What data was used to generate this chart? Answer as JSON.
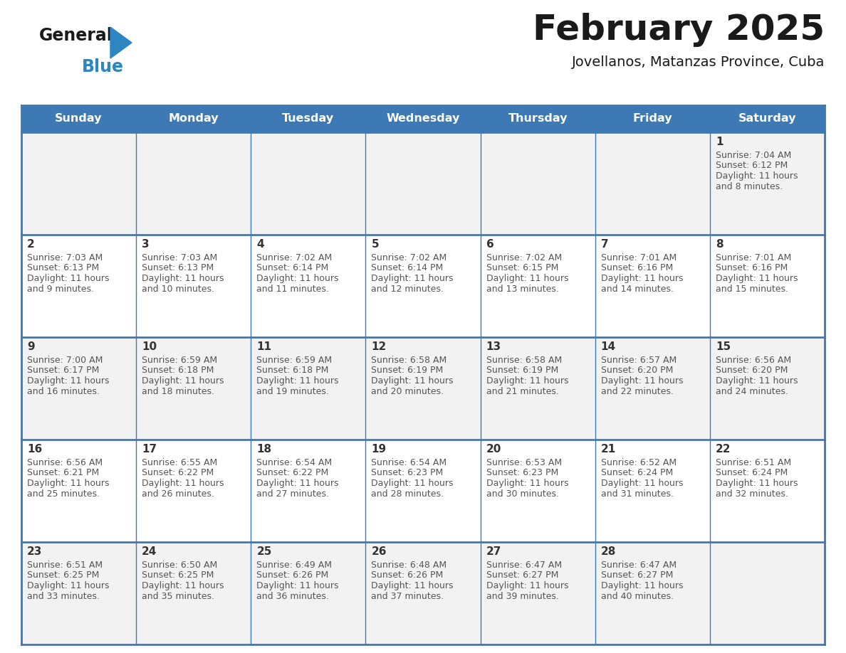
{
  "title": "February 2025",
  "subtitle": "Jovellanos, Matanzas Province, Cuba",
  "days_of_week": [
    "Sunday",
    "Monday",
    "Tuesday",
    "Wednesday",
    "Thursday",
    "Friday",
    "Saturday"
  ],
  "header_bg": "#3D7AB5",
  "header_text": "#FFFFFF",
  "cell_bg_odd": "#F2F2F2",
  "cell_bg_even": "#FFFFFF",
  "cell_border": "#3D7AB5",
  "text_color": "#555555",
  "day_number_color": "#333333",
  "logo_general_color": "#1a1a1a",
  "logo_blue_color": "#2E86C1",
  "calendar_data": [
    [
      null,
      null,
      null,
      null,
      null,
      null,
      {
        "day": 1,
        "sunrise": "7:04 AM",
        "sunset": "6:12 PM",
        "daylight_h": "11 hours",
        "daylight_m": "and 8 minutes."
      }
    ],
    [
      {
        "day": 2,
        "sunrise": "7:03 AM",
        "sunset": "6:13 PM",
        "daylight_h": "11 hours",
        "daylight_m": "and 9 minutes."
      },
      {
        "day": 3,
        "sunrise": "7:03 AM",
        "sunset": "6:13 PM",
        "daylight_h": "11 hours",
        "daylight_m": "and 10 minutes."
      },
      {
        "day": 4,
        "sunrise": "7:02 AM",
        "sunset": "6:14 PM",
        "daylight_h": "11 hours",
        "daylight_m": "and 11 minutes."
      },
      {
        "day": 5,
        "sunrise": "7:02 AM",
        "sunset": "6:14 PM",
        "daylight_h": "11 hours",
        "daylight_m": "and 12 minutes."
      },
      {
        "day": 6,
        "sunrise": "7:02 AM",
        "sunset": "6:15 PM",
        "daylight_h": "11 hours",
        "daylight_m": "and 13 minutes."
      },
      {
        "day": 7,
        "sunrise": "7:01 AM",
        "sunset": "6:16 PM",
        "daylight_h": "11 hours",
        "daylight_m": "and 14 minutes."
      },
      {
        "day": 8,
        "sunrise": "7:01 AM",
        "sunset": "6:16 PM",
        "daylight_h": "11 hours",
        "daylight_m": "and 15 minutes."
      }
    ],
    [
      {
        "day": 9,
        "sunrise": "7:00 AM",
        "sunset": "6:17 PM",
        "daylight_h": "11 hours",
        "daylight_m": "and 16 minutes."
      },
      {
        "day": 10,
        "sunrise": "6:59 AM",
        "sunset": "6:18 PM",
        "daylight_h": "11 hours",
        "daylight_m": "and 18 minutes."
      },
      {
        "day": 11,
        "sunrise": "6:59 AM",
        "sunset": "6:18 PM",
        "daylight_h": "11 hours",
        "daylight_m": "and 19 minutes."
      },
      {
        "day": 12,
        "sunrise": "6:58 AM",
        "sunset": "6:19 PM",
        "daylight_h": "11 hours",
        "daylight_m": "and 20 minutes."
      },
      {
        "day": 13,
        "sunrise": "6:58 AM",
        "sunset": "6:19 PM",
        "daylight_h": "11 hours",
        "daylight_m": "and 21 minutes."
      },
      {
        "day": 14,
        "sunrise": "6:57 AM",
        "sunset": "6:20 PM",
        "daylight_h": "11 hours",
        "daylight_m": "and 22 minutes."
      },
      {
        "day": 15,
        "sunrise": "6:56 AM",
        "sunset": "6:20 PM",
        "daylight_h": "11 hours",
        "daylight_m": "and 24 minutes."
      }
    ],
    [
      {
        "day": 16,
        "sunrise": "6:56 AM",
        "sunset": "6:21 PM",
        "daylight_h": "11 hours",
        "daylight_m": "and 25 minutes."
      },
      {
        "day": 17,
        "sunrise": "6:55 AM",
        "sunset": "6:22 PM",
        "daylight_h": "11 hours",
        "daylight_m": "and 26 minutes."
      },
      {
        "day": 18,
        "sunrise": "6:54 AM",
        "sunset": "6:22 PM",
        "daylight_h": "11 hours",
        "daylight_m": "and 27 minutes."
      },
      {
        "day": 19,
        "sunrise": "6:54 AM",
        "sunset": "6:23 PM",
        "daylight_h": "11 hours",
        "daylight_m": "and 28 minutes."
      },
      {
        "day": 20,
        "sunrise": "6:53 AM",
        "sunset": "6:23 PM",
        "daylight_h": "11 hours",
        "daylight_m": "and 30 minutes."
      },
      {
        "day": 21,
        "sunrise": "6:52 AM",
        "sunset": "6:24 PM",
        "daylight_h": "11 hours",
        "daylight_m": "and 31 minutes."
      },
      {
        "day": 22,
        "sunrise": "6:51 AM",
        "sunset": "6:24 PM",
        "daylight_h": "11 hours",
        "daylight_m": "and 32 minutes."
      }
    ],
    [
      {
        "day": 23,
        "sunrise": "6:51 AM",
        "sunset": "6:25 PM",
        "daylight_h": "11 hours",
        "daylight_m": "and 33 minutes."
      },
      {
        "day": 24,
        "sunrise": "6:50 AM",
        "sunset": "6:25 PM",
        "daylight_h": "11 hours",
        "daylight_m": "and 35 minutes."
      },
      {
        "day": 25,
        "sunrise": "6:49 AM",
        "sunset": "6:26 PM",
        "daylight_h": "11 hours",
        "daylight_m": "and 36 minutes."
      },
      {
        "day": 26,
        "sunrise": "6:48 AM",
        "sunset": "6:26 PM",
        "daylight_h": "11 hours",
        "daylight_m": "and 37 minutes."
      },
      {
        "day": 27,
        "sunrise": "6:47 AM",
        "sunset": "6:27 PM",
        "daylight_h": "11 hours",
        "daylight_m": "and 39 minutes."
      },
      {
        "day": 28,
        "sunrise": "6:47 AM",
        "sunset": "6:27 PM",
        "daylight_h": "11 hours",
        "daylight_m": "and 40 minutes."
      },
      null
    ]
  ]
}
